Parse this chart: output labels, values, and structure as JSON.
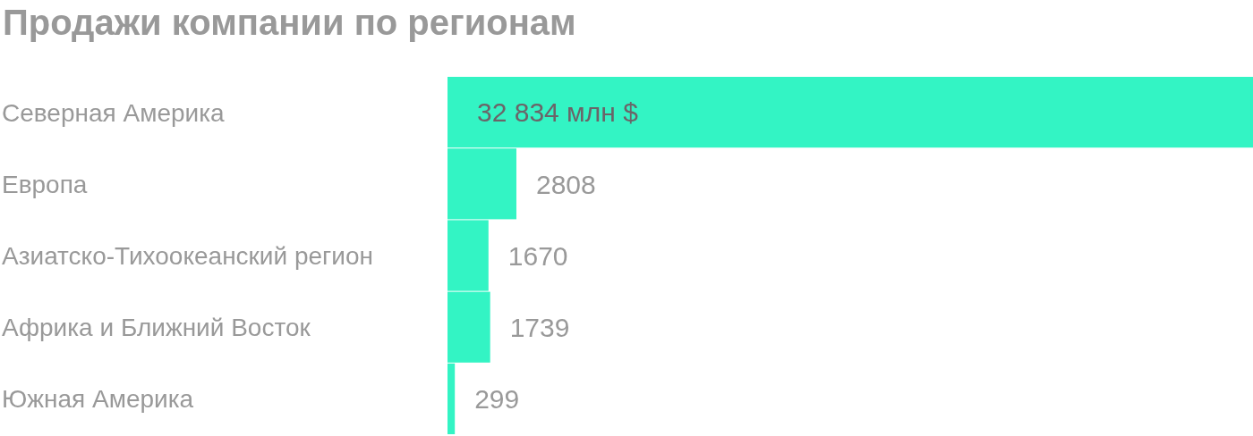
{
  "chart_data": {
    "type": "bar",
    "orientation": "horizontal",
    "title": "Продажи компании по регионам",
    "categories": [
      "Северная Америка",
      "Европа",
      "Азиатско-Тихоокеанский регион",
      "Африка и Ближний Восток",
      "Южная Америка"
    ],
    "values": [
      32834,
      2808,
      1670,
      1739,
      299
    ],
    "value_labels": [
      "32 834 млн $",
      "2808",
      "1670",
      "1739",
      "299"
    ],
    "color": "#33f4c4"
  }
}
